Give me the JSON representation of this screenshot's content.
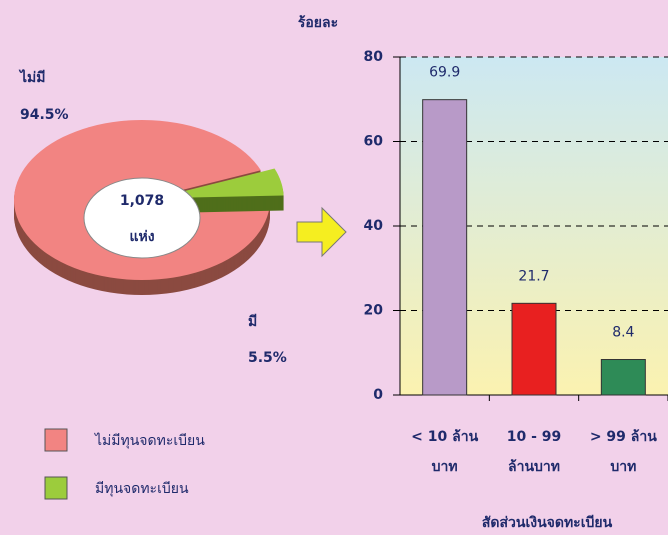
{
  "chart_data": [
    {
      "type": "pie",
      "categories": [
        "ไม่มี",
        "มี"
      ],
      "values": [
        94.5,
        5.5
      ],
      "value_labels": [
        "94.5%",
        "5.5%"
      ],
      "colors": [
        "#f28482",
        "#9ccc3c"
      ],
      "legend": [
        "ไม่มีทุนจดทะเบียน",
        "มีทุนจดทะเบียน"
      ],
      "center_text": [
        "1,078",
        "แห่ง"
      ]
    },
    {
      "type": "bar",
      "y_label": "ร้อยละ",
      "x_label": "สัดส่วนเงินจดทะเบียน",
      "categories": [
        [
          "< 10 ล้าน",
          "บาท"
        ],
        [
          "10 - 99",
          "ล้านบาท"
        ],
        [
          "> 99 ล้าน",
          "บาท"
        ]
      ],
      "values": [
        69.9,
        21.7,
        8.4
      ],
      "colors": [
        "#b89ac8",
        "#e82020",
        "#2e8b57"
      ],
      "ylim": [
        0,
        80
      ],
      "yticks": [
        0,
        20,
        40,
        60,
        80
      ],
      "grid": true
    }
  ]
}
